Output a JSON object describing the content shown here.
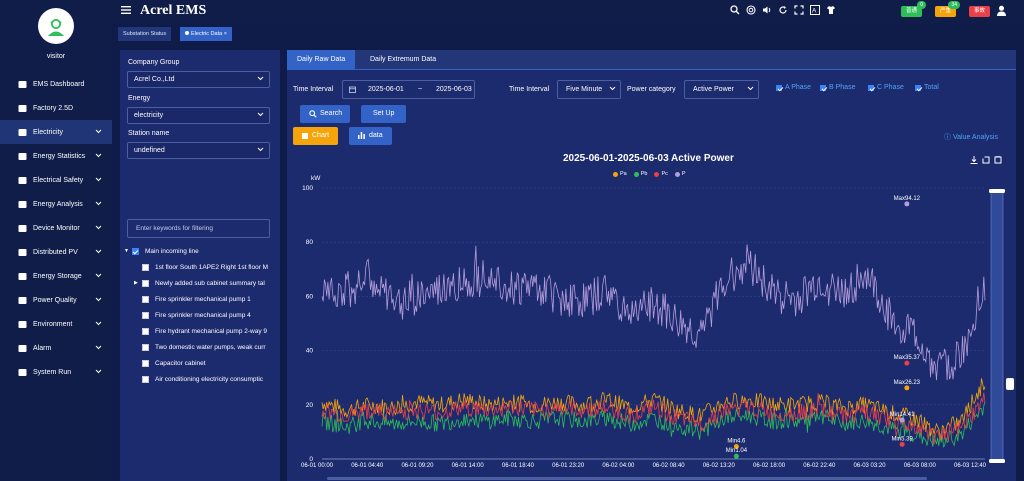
{
  "app": {
    "title": "Acrel EMS"
  },
  "user": {
    "name": "visitor"
  },
  "sidebar": {
    "items": [
      {
        "label": "EMS Dashboard",
        "icon": "dashboard-icon",
        "chevron": false
      },
      {
        "label": "Factory 2.5D",
        "icon": "monitor-icon",
        "chevron": false
      },
      {
        "label": "Electricity",
        "icon": "electricity-icon",
        "chevron": true,
        "active": true
      },
      {
        "label": "Energy Statistics",
        "icon": "bar-chart-icon",
        "chevron": true
      },
      {
        "label": "Electrical Safety",
        "icon": "warning-icon",
        "chevron": true
      },
      {
        "label": "Energy Analysis",
        "icon": "analysis-icon",
        "chevron": true
      },
      {
        "label": "Device Monitor",
        "icon": "device-icon",
        "chevron": true
      },
      {
        "label": "Distributed PV",
        "icon": "solar-icon",
        "chevron": true
      },
      {
        "label": "Energy Storage",
        "icon": "battery-icon",
        "chevron": true
      },
      {
        "label": "Power Quality",
        "icon": "quality-icon",
        "chevron": true
      },
      {
        "label": "Environment",
        "icon": "environment-icon",
        "chevron": true
      },
      {
        "label": "Alarm",
        "icon": "bell-icon",
        "chevron": true
      },
      {
        "label": "System Run",
        "icon": "system-icon",
        "chevron": true
      }
    ]
  },
  "header": {
    "alerts": [
      {
        "label": "普通",
        "count": "0",
        "color": "#2ebd59"
      },
      {
        "label": "严重",
        "count": "34",
        "color": "#f5a50b"
      },
      {
        "label": "事故",
        "count": "",
        "color": "#e8414a"
      }
    ]
  },
  "page_tabs": [
    {
      "label": "Substation Status"
    },
    {
      "label": "Electric Data",
      "close": "×"
    }
  ],
  "filters": {
    "company_group_label": "Company Group",
    "company_group_value": "Acrel Co.,Ltd",
    "energy_label": "Energy",
    "energy_value": "electricity",
    "station_label": "Station name",
    "station_value": "undefined",
    "filter_placeholder": "Enter keywords for filtering"
  },
  "tree": {
    "root": "Main incoming line",
    "children": [
      "1st floor South 1APE2 Right 1st floor M",
      "Newly added sub cabinet summary tal",
      "Fire sprinkler mechanical pump 1",
      "Fire sprinkler mechanical pump 4",
      "Fire hydrant mechanical pump 2-way 9",
      "Two domestic water pumps, weak curr",
      "Capacitor cabinet",
      "Air conditioning electricity consumptic"
    ]
  },
  "tabs": {
    "raw": "Daily Raw Data",
    "extremum": "Daily Extremum Data"
  },
  "query": {
    "time_interval_label": "Time Interval",
    "start_date": "2025-06-01",
    "separator": "~",
    "end_date": "2025-06-03",
    "interval_label": "Time Interval",
    "interval_value": "Five Minute",
    "power_category_label": "Power category",
    "power_category_value": "Active Power",
    "phases": [
      "A Phase",
      "B Phase",
      "C Phase",
      "Total"
    ],
    "search_label": "Search",
    "setup_label": "Set Up",
    "chart_label": "Chart",
    "data_label": "data",
    "value_analysis": "Value Analysis"
  },
  "chart_data": {
    "type": "line",
    "title": "2025-06-01-2025-06-03  Active Power",
    "ylabel": "kW",
    "ylim": [
      0,
      100
    ],
    "yticks": [
      0,
      20,
      40,
      60,
      80,
      100
    ],
    "xticks": [
      "06-01 00:00",
      "06-01 04:40",
      "06-01 09:20",
      "06-01 14:00",
      "06-01 18:40",
      "06-01 23:20",
      "06-02 04:00",
      "06-02 08:40",
      "06-02 13:20",
      "06-02 18:00",
      "06-02 22:40",
      "06-03 03:20",
      "06-03 08:00",
      "06-03 12:40"
    ],
    "series": [
      {
        "name": "Pa",
        "color": "#f5a50b"
      },
      {
        "name": "Pb",
        "color": "#2ebd59"
      },
      {
        "name": "Pc",
        "color": "#e8414a"
      },
      {
        "name": "P",
        "color": "#b39ddb"
      }
    ],
    "profile": {
      "x": [
        0,
        1,
        2,
        3,
        4,
        5,
        6,
        7,
        8,
        9,
        10,
        11,
        12,
        13,
        14,
        15,
        16,
        17,
        18,
        19,
        20,
        21,
        22,
        23,
        24,
        25,
        26,
        27,
        28
      ],
      "P": [
        64,
        62,
        67,
        57,
        60,
        62,
        65,
        70,
        63,
        64,
        60,
        58,
        62,
        54,
        57,
        50,
        45,
        66,
        73,
        62,
        58,
        65,
        61,
        68,
        52,
        46,
        32,
        38,
        65
      ],
      "Pa": [
        21,
        18,
        20,
        19,
        21,
        20,
        22,
        20,
        21,
        20,
        21,
        20,
        22,
        19,
        22,
        18,
        16,
        21,
        22,
        20,
        20,
        21,
        19,
        20,
        17,
        15,
        10,
        14,
        29
      ],
      "Pb": [
        14,
        12,
        14,
        13,
        14,
        13,
        15,
        14,
        15,
        14,
        15,
        14,
        15,
        13,
        15,
        12,
        10,
        15,
        16,
        14,
        14,
        15,
        13,
        14,
        11,
        9,
        6,
        9,
        20
      ],
      "Pc": [
        18,
        16,
        18,
        17,
        18,
        17,
        19,
        18,
        19,
        18,
        19,
        18,
        19,
        16,
        19,
        15,
        13,
        18,
        19,
        17,
        17,
        18,
        16,
        17,
        14,
        12,
        8,
        11,
        22
      ]
    },
    "annotations": [
      {
        "label": "Max94.12",
        "series": "P",
        "x": 24.7,
        "y": 94.12
      },
      {
        "label": "Max35.37",
        "series": "Pc",
        "x": 24.7,
        "y": 35.37
      },
      {
        "label": "Max26.23",
        "series": "Pa",
        "x": 24.7,
        "y": 26.23
      },
      {
        "label": "Min14.41",
        "series": "P",
        "x": 24.5,
        "y": 14.41
      },
      {
        "label": "Min5.39",
        "series": "Pc",
        "x": 24.5,
        "y": 5.39
      },
      {
        "label": "Min4.6",
        "series": "Pa",
        "x": 17.5,
        "y": 4.6
      },
      {
        "label": "Min1.04",
        "series": "Pb",
        "x": 17.5,
        "y": 1.04
      }
    ]
  }
}
